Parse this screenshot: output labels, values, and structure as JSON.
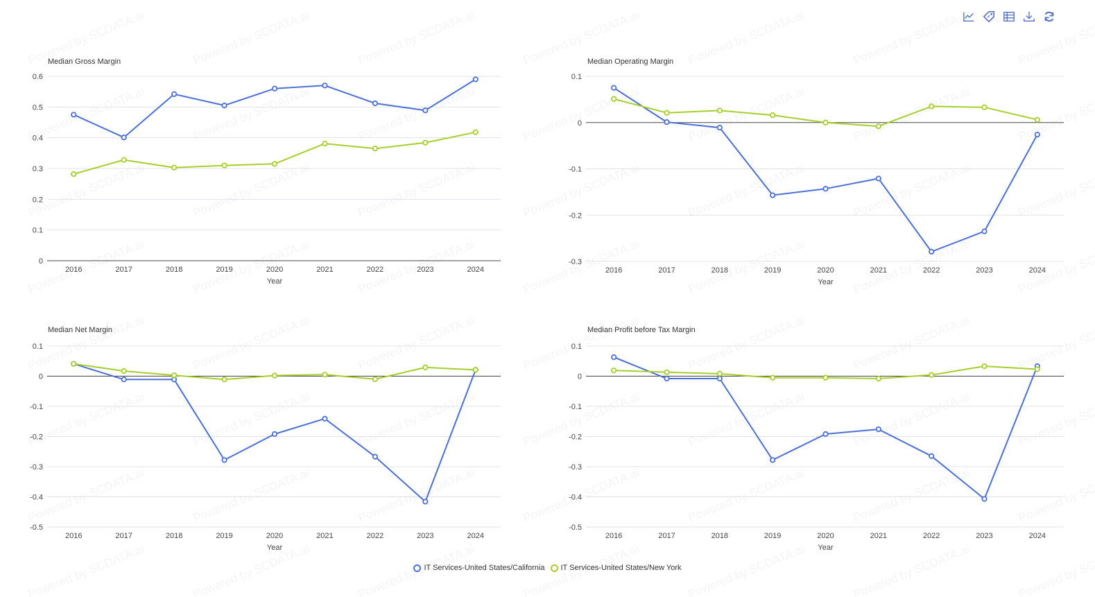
{
  "toolbar": {
    "items": [
      {
        "icon": "line-chart-icon",
        "title": "Switch to line chart"
      },
      {
        "icon": "tag-icon",
        "title": "Toggle labels"
      },
      {
        "icon": "data-table-icon",
        "title": "Data view"
      },
      {
        "icon": "download-icon",
        "title": "Save as image"
      },
      {
        "icon": "refresh-icon",
        "title": "Restore"
      }
    ],
    "color": "#5470c6"
  },
  "watermark": "Powered by SCDATA.ai",
  "legend": {
    "items": [
      {
        "label": "IT Services-United States/California",
        "color": "#4b6fd8"
      },
      {
        "label": "IT Services-United States/New York",
        "color": "#a5cf2b"
      }
    ]
  },
  "chart_data": [
    {
      "type": "line",
      "title": "Median Gross Margin",
      "xlabel": "Year",
      "ylabel": "",
      "categories": [
        "2016",
        "2017",
        "2018",
        "2019",
        "2020",
        "2021",
        "2022",
        "2023",
        "2024"
      ],
      "ylim": [
        0,
        0.6
      ],
      "yticks": [
        "0",
        "0.1",
        "0.2",
        "0.3",
        "0.4",
        "0.5",
        "0.6"
      ],
      "ytick_values": [
        0,
        0.1,
        0.2,
        0.3,
        0.4,
        0.5,
        0.6
      ],
      "grid": true,
      "series": [
        {
          "name": "IT Services-United States/California",
          "values": [
            0.475,
            0.401,
            0.542,
            0.505,
            0.56,
            0.57,
            0.512,
            0.489,
            0.59
          ]
        },
        {
          "name": "IT Services-United States/New York",
          "values": [
            0.282,
            0.328,
            0.303,
            0.31,
            0.315,
            0.381,
            0.365,
            0.384,
            0.418
          ]
        }
      ]
    },
    {
      "type": "line",
      "title": "Median Operating Margin",
      "xlabel": "Year",
      "ylabel": "",
      "categories": [
        "2016",
        "2017",
        "2018",
        "2019",
        "2020",
        "2021",
        "2022",
        "2023",
        "2024"
      ],
      "ylim": [
        -0.3,
        0.1
      ],
      "yticks": [
        "-0.3",
        "-0.2",
        "-0.1",
        "0",
        "0.1"
      ],
      "ytick_values": [
        -0.3,
        -0.2,
        -0.1,
        0,
        0.1
      ],
      "grid": true,
      "series": [
        {
          "name": "IT Services-United States/California",
          "values": [
            0.075,
            0.001,
            -0.011,
            -0.157,
            -0.143,
            -0.121,
            -0.279,
            -0.235,
            -0.026
          ]
        },
        {
          "name": "IT Services-United States/New York",
          "values": [
            0.051,
            0.021,
            0.026,
            0.016,
            0.0,
            -0.008,
            0.035,
            0.033,
            0.006
          ]
        }
      ]
    },
    {
      "type": "line",
      "title": "Median Net Margin",
      "xlabel": "Year",
      "ylabel": "",
      "categories": [
        "2016",
        "2017",
        "2018",
        "2019",
        "2020",
        "2021",
        "2022",
        "2023",
        "2024"
      ],
      "ylim": [
        -0.5,
        0.1
      ],
      "yticks": [
        "-0.5",
        "-0.4",
        "-0.3",
        "-0.2",
        "-0.1",
        "0",
        "0.1"
      ],
      "ytick_values": [
        -0.5,
        -0.4,
        -0.3,
        -0.2,
        -0.1,
        0,
        0.1
      ],
      "grid": true,
      "series": [
        {
          "name": "IT Services-United States/California",
          "values": [
            0.041,
            -0.011,
            -0.011,
            -0.278,
            -0.192,
            -0.141,
            -0.267,
            -0.416,
            0.021
          ]
        },
        {
          "name": "IT Services-United States/New York",
          "values": [
            0.041,
            0.017,
            0.003,
            -0.011,
            0.002,
            0.005,
            -0.01,
            0.029,
            0.021
          ]
        }
      ]
    },
    {
      "type": "line",
      "title": "Median Profit before Tax Margin",
      "xlabel": "Year",
      "ylabel": "",
      "categories": [
        "2016",
        "2017",
        "2018",
        "2019",
        "2020",
        "2021",
        "2022",
        "2023",
        "2024"
      ],
      "ylim": [
        -0.5,
        0.1
      ],
      "yticks": [
        "-0.5",
        "-0.4",
        "-0.3",
        "-0.2",
        "-0.1",
        "0",
        "0.1"
      ],
      "ytick_values": [
        -0.5,
        -0.4,
        -0.3,
        -0.2,
        -0.1,
        0,
        0.1
      ],
      "grid": true,
      "series": [
        {
          "name": "IT Services-United States/California",
          "values": [
            0.063,
            -0.008,
            -0.008,
            -0.278,
            -0.192,
            -0.176,
            -0.265,
            -0.407,
            0.033
          ]
        },
        {
          "name": "IT Services-United States/New York",
          "values": [
            0.019,
            0.013,
            0.008,
            -0.005,
            -0.005,
            -0.008,
            0.004,
            0.033,
            0.023
          ]
        }
      ]
    }
  ]
}
